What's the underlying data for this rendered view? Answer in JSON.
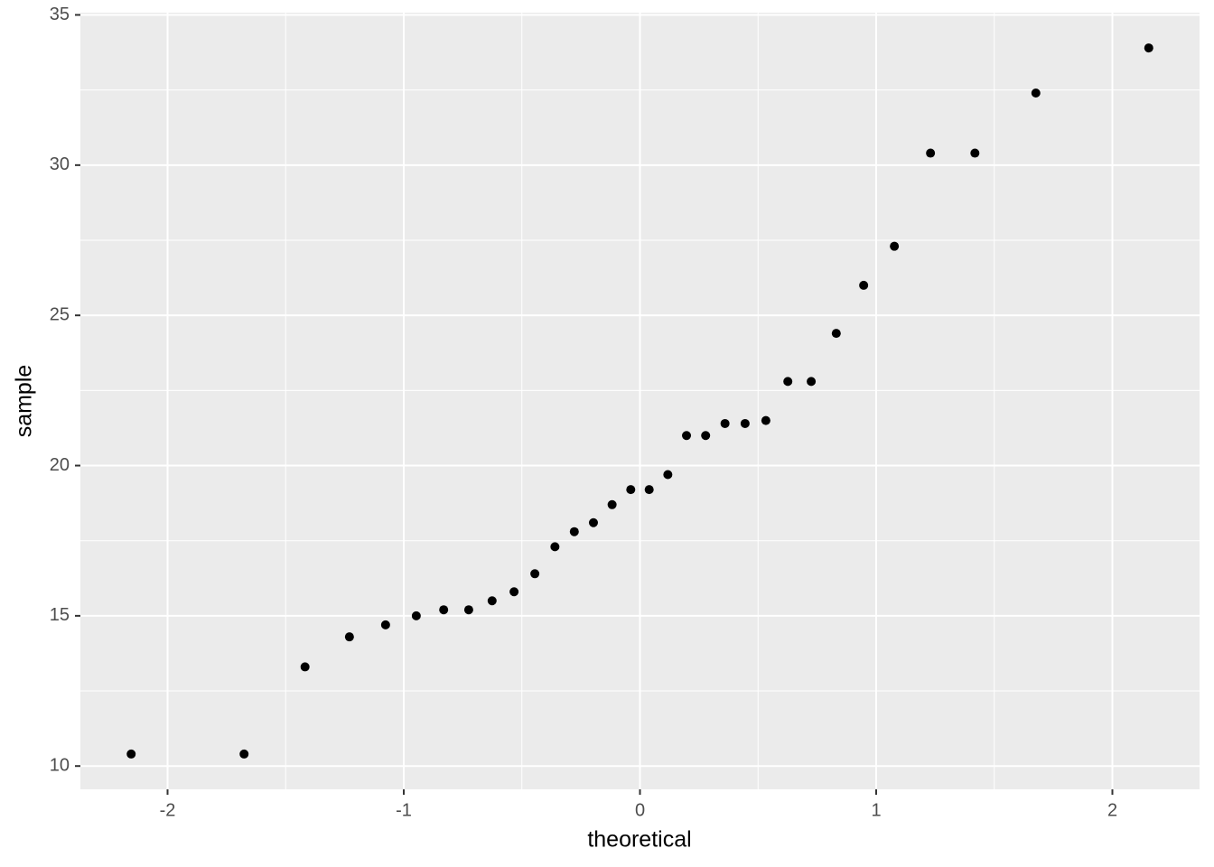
{
  "chart_data": {
    "type": "scatter",
    "x_label": "theoretical",
    "y_label": "sample",
    "x": [
      -2.154,
      -1.676,
      -1.418,
      -1.23,
      -1.077,
      -0.947,
      -0.831,
      -0.725,
      -0.626,
      -0.533,
      -0.445,
      -0.36,
      -0.278,
      -0.197,
      -0.118,
      -0.039,
      0.039,
      0.118,
      0.197,
      0.278,
      0.36,
      0.445,
      0.533,
      0.626,
      0.725,
      0.831,
      0.947,
      1.077,
      1.23,
      1.418,
      1.676,
      2.154
    ],
    "values": [
      10.4,
      10.4,
      13.3,
      14.3,
      14.7,
      15.0,
      15.2,
      15.2,
      15.5,
      15.8,
      16.4,
      17.3,
      17.8,
      18.1,
      18.7,
      19.2,
      19.2,
      19.7,
      21.0,
      21.0,
      21.4,
      21.4,
      21.5,
      22.8,
      22.8,
      24.4,
      26.0,
      27.3,
      30.4,
      30.4,
      32.4,
      33.9
    ],
    "color": "#000000",
    "xlim": [
      -2.369,
      2.369
    ],
    "xticks": [
      -2,
      -1,
      0,
      1,
      2
    ],
    "ylim": [
      9.225,
      35.075
    ],
    "yticks": [
      10,
      15,
      20,
      25,
      30,
      35
    ],
    "grid": true
  }
}
